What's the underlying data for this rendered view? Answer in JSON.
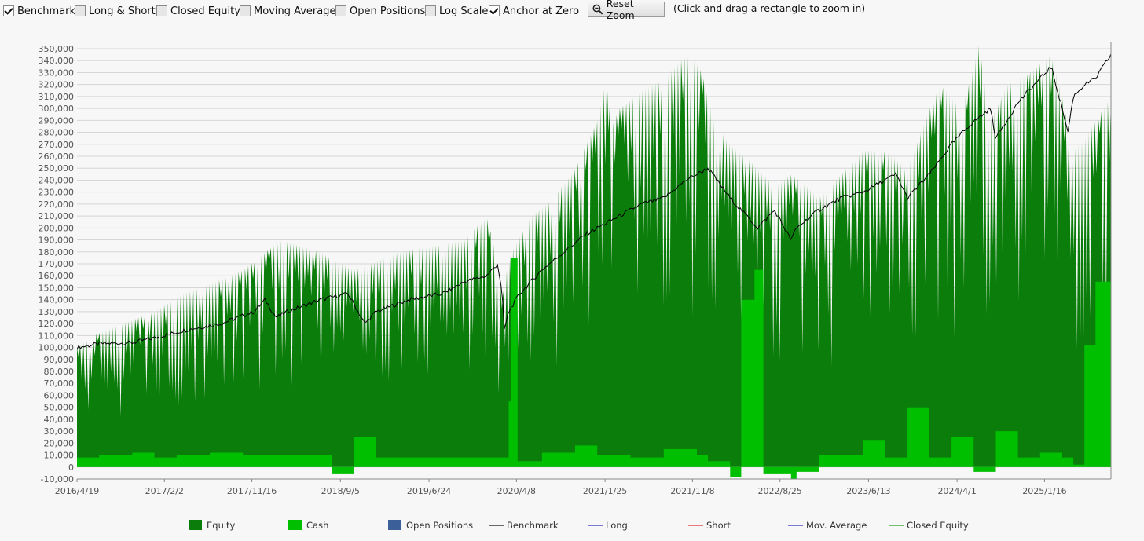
{
  "toolbar": {
    "checkboxes": [
      {
        "label": "Benchmark",
        "checked": true
      },
      {
        "label": "Long & Short",
        "checked": false
      },
      {
        "label": "Closed Equity",
        "checked": false
      },
      {
        "label": "Moving Average",
        "checked": false
      },
      {
        "label": "Open Positions",
        "checked": false
      },
      {
        "label": "Log Scale",
        "checked": false
      },
      {
        "label": "Anchor at Zero",
        "checked": true
      }
    ],
    "reset_zoom_label": "Reset Zoom",
    "reset_zoom_icon": "zoom-out-icon",
    "hint": "(Click and drag a rectangle to zoom in)"
  },
  "chart_data": {
    "type": "area",
    "y_ticks": [
      "-10,000",
      "0",
      "10,000",
      "20,000",
      "30,000",
      "40,000",
      "50,000",
      "60,000",
      "70,000",
      "80,000",
      "90,000",
      "100,000",
      "110,000",
      "120,000",
      "130,000",
      "140,000",
      "150,000",
      "160,000",
      "170,000",
      "180,000",
      "190,000",
      "200,000",
      "210,000",
      "220,000",
      "230,000",
      "240,000",
      "250,000",
      "260,000",
      "270,000",
      "280,000",
      "290,000",
      "300,000",
      "310,000",
      "320,000",
      "330,000",
      "340,000",
      "350,000"
    ],
    "ylim": [
      -10000,
      350000
    ],
    "x_ticks": [
      "2016/4/19",
      "2017/2/2",
      "2017/11/16",
      "2018/9/5",
      "2019/6/24",
      "2020/4/8",
      "2021/1/25",
      "2021/11/8",
      "2022/8/25",
      "2023/6/13",
      "2024/4/1",
      "2025/1/16"
    ],
    "x_tick_years": [
      2016.3,
      2017.09,
      2017.88,
      2018.68,
      2019.48,
      2020.27,
      2021.07,
      2021.86,
      2022.65,
      2023.45,
      2024.25,
      2025.04
    ],
    "xlim": [
      2016.3,
      2025.64
    ],
    "grid": true,
    "series": [
      {
        "name": "Equity",
        "color": "#0a7d0a",
        "x": [
          2016.3,
          2016.45,
          2016.7,
          2017.0,
          2017.25,
          2017.55,
          2017.8,
          2018.0,
          2018.15,
          2018.5,
          2018.8,
          2018.95,
          2019.2,
          2019.5,
          2019.8,
          2020.0,
          2020.1,
          2020.14,
          2020.2,
          2020.25,
          2020.4,
          2020.6,
          2020.8,
          2021.0,
          2021.1,
          2021.13,
          2021.2,
          2021.4,
          2021.6,
          2021.75,
          2021.85,
          2021.95,
          2022.05,
          2022.2,
          2022.4,
          2022.6,
          2022.75,
          2022.9,
          2023.0,
          2023.2,
          2023.4,
          2023.6,
          2023.8,
          2024.0,
          2024.1,
          2024.3,
          2024.45,
          2024.55,
          2024.7,
          2024.9,
          2025.1,
          2025.2,
          2025.3,
          2025.4,
          2025.5,
          2025.64
        ],
        "values": [
          100000,
          110000,
          120000,
          130000,
          145000,
          155000,
          165000,
          180000,
          190000,
          180000,
          165000,
          170000,
          180000,
          185000,
          190000,
          210000,
          175000,
          140000,
          175000,
          185000,
          210000,
          225000,
          250000,
          290000,
          335000,
          285000,
          300000,
          315000,
          325000,
          340000,
          345000,
          330000,
          290000,
          270000,
          255000,
          235000,
          245000,
          235000,
          225000,
          245000,
          265000,
          265000,
          250000,
          300000,
          320000,
          300000,
          355000,
          290000,
          320000,
          330000,
          345000,
          310000,
          265000,
          275000,
          290000,
          310000
        ]
      },
      {
        "name": "Cash",
        "color": "#00bf00",
        "x": [
          2016.3,
          2016.5,
          2016.8,
          2017.0,
          2017.2,
          2017.5,
          2017.8,
          2018.0,
          2018.4,
          2018.6,
          2018.7,
          2018.8,
          2019.0,
          2019.5,
          2020.0,
          2020.2,
          2020.22,
          2020.26,
          2020.28,
          2020.45,
          2020.5,
          2020.8,
          2021.0,
          2021.3,
          2021.6,
          2021.9,
          2022.0,
          2022.2,
          2022.3,
          2022.42,
          2022.5,
          2022.6,
          2022.75,
          2022.8,
          2023.0,
          2023.4,
          2023.6,
          2023.8,
          2024.0,
          2024.2,
          2024.4,
          2024.6,
          2024.8,
          2025.0,
          2025.2,
          2025.3,
          2025.4,
          2025.5,
          2025.64
        ],
        "values": [
          8000,
          10000,
          12000,
          8000,
          10000,
          12000,
          10000,
          10000,
          10000,
          -6000,
          -6000,
          25000,
          8000,
          8000,
          8000,
          55000,
          175000,
          175000,
          5000,
          5000,
          12000,
          18000,
          10000,
          8000,
          15000,
          10000,
          5000,
          -8000,
          140000,
          165000,
          -6000,
          -6000,
          -10000,
          -4000,
          10000,
          22000,
          8000,
          50000,
          8000,
          25000,
          -4000,
          30000,
          8000,
          12000,
          8000,
          2000,
          102000,
          155000,
          -10000
        ]
      },
      {
        "name": "Benchmark",
        "color": "#000000",
        "x": [
          2016.3,
          2016.5,
          2016.8,
          2017.0,
          2017.3,
          2017.6,
          2017.9,
          2018.0,
          2018.1,
          2018.2,
          2018.5,
          2018.75,
          2018.9,
          2019.0,
          2019.3,
          2019.6,
          2019.8,
          2020.0,
          2020.1,
          2020.14,
          2020.16,
          2020.2,
          2020.3,
          2020.5,
          2020.7,
          2020.9,
          2021.1,
          2021.4,
          2021.6,
          2021.8,
          2021.9,
          2022.0,
          2022.2,
          2022.45,
          2022.6,
          2022.75,
          2022.8,
          2023.0,
          2023.2,
          2023.4,
          2023.6,
          2023.7,
          2023.8,
          2024.0,
          2024.2,
          2024.35,
          2024.55,
          2024.6,
          2024.8,
          2025.1,
          2025.2,
          2025.25,
          2025.3,
          2025.4,
          2025.5,
          2025.64
        ],
        "values": [
          100000,
          103000,
          104000,
          108000,
          115000,
          120000,
          130000,
          140000,
          125000,
          130000,
          140000,
          145000,
          120000,
          130000,
          140000,
          145000,
          155000,
          160000,
          170000,
          145000,
          115000,
          130000,
          145000,
          165000,
          180000,
          195000,
          205000,
          220000,
          225000,
          240000,
          245000,
          250000,
          225000,
          200000,
          215000,
          190000,
          200000,
          215000,
          225000,
          230000,
          240000,
          245000,
          225000,
          245000,
          270000,
          285000,
          300000,
          275000,
          305000,
          335000,
          300000,
          280000,
          310000,
          320000,
          325000,
          345000
        ]
      }
    ]
  },
  "legend": [
    {
      "label": "Equity",
      "kind": "box",
      "color": "#0a7d0a"
    },
    {
      "label": "Cash",
      "kind": "box",
      "color": "#00bf00"
    },
    {
      "label": "Open Positions",
      "kind": "box",
      "color": "#3a5f99"
    },
    {
      "label": "Benchmark",
      "kind": "line",
      "color": "#111111"
    },
    {
      "label": "Long",
      "kind": "line",
      "color": "#3030c0"
    },
    {
      "label": "Short",
      "kind": "line",
      "color": "#e03030"
    },
    {
      "label": "Mov. Average",
      "kind": "line",
      "color": "#3030c0"
    },
    {
      "label": "Closed Equity",
      "kind": "line",
      "color": "#20a020"
    }
  ]
}
